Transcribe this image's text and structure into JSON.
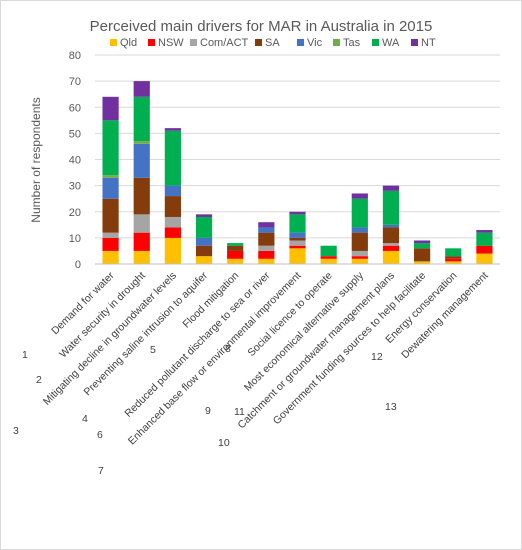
{
  "chart_data": {
    "type": "bar",
    "stacked": true,
    "title": "Perceived main drivers for MAR in Australia in 2015",
    "ylabel": "Number of respondents",
    "xlabel": "",
    "ylim": [
      0,
      80
    ],
    "yticks": [
      0,
      10,
      20,
      30,
      40,
      50,
      60,
      70,
      80
    ],
    "grid": true,
    "legend_position": "top",
    "categories": [
      "Demand for water",
      "Water security in drought",
      "Mitigating decline in groundwater levels",
      "Preventing saline intrusion to aquifer",
      "Flood mitigation",
      "Reduced pollutant discharge to sea or river",
      "Enhanced base flow or environmental improvement",
      "Social licence to operate",
      "Most economical alternative supply",
      "Catchment or groundwater management plans",
      "Government funding sources to help facilitate",
      "Energy conservation",
      "Dewatering management"
    ],
    "category_numbers": [
      "1",
      "2",
      "3",
      "4",
      "5",
      "6",
      "7",
      "8",
      "9",
      "10",
      "11",
      "12",
      "13"
    ],
    "series": [
      {
        "name": "Qld",
        "color": "#FFC000",
        "values": [
          5,
          5,
          10,
          3,
          2,
          2,
          6,
          2,
          2,
          5,
          1,
          1,
          4
        ]
      },
      {
        "name": "NSW",
        "color": "#FF0000",
        "values": [
          5,
          7,
          4,
          0,
          3,
          3,
          1,
          1,
          1,
          2,
          0,
          1,
          3
        ]
      },
      {
        "name": "Com/ACT",
        "color": "#A5A5A5",
        "values": [
          2,
          7,
          4,
          0,
          0,
          2,
          2,
          0,
          2,
          1,
          0,
          0,
          0
        ]
      },
      {
        "name": "SA",
        "color": "#843C0C",
        "values": [
          13,
          14,
          8,
          4,
          2,
          5,
          1,
          0,
          7,
          6,
          5,
          1,
          0
        ]
      },
      {
        "name": "Vic",
        "color": "#4472C4",
        "values": [
          8,
          13,
          4,
          3,
          0,
          2,
          2,
          0,
          2,
          1,
          0,
          0,
          0
        ]
      },
      {
        "name": "Tas",
        "color": "#70AD47",
        "values": [
          1,
          1,
          0,
          0,
          0,
          0,
          0,
          0,
          0,
          0,
          0,
          0,
          0
        ]
      },
      {
        "name": "WA",
        "color": "#00B050",
        "values": [
          21,
          17,
          21,
          8,
          1,
          0,
          7,
          4,
          11,
          13,
          2,
          3,
          5
        ]
      },
      {
        "name": "NT",
        "color": "#7030A0",
        "values": [
          9,
          6,
          1,
          1,
          0,
          2,
          1,
          0,
          2,
          2,
          1,
          0,
          1
        ]
      }
    ]
  }
}
